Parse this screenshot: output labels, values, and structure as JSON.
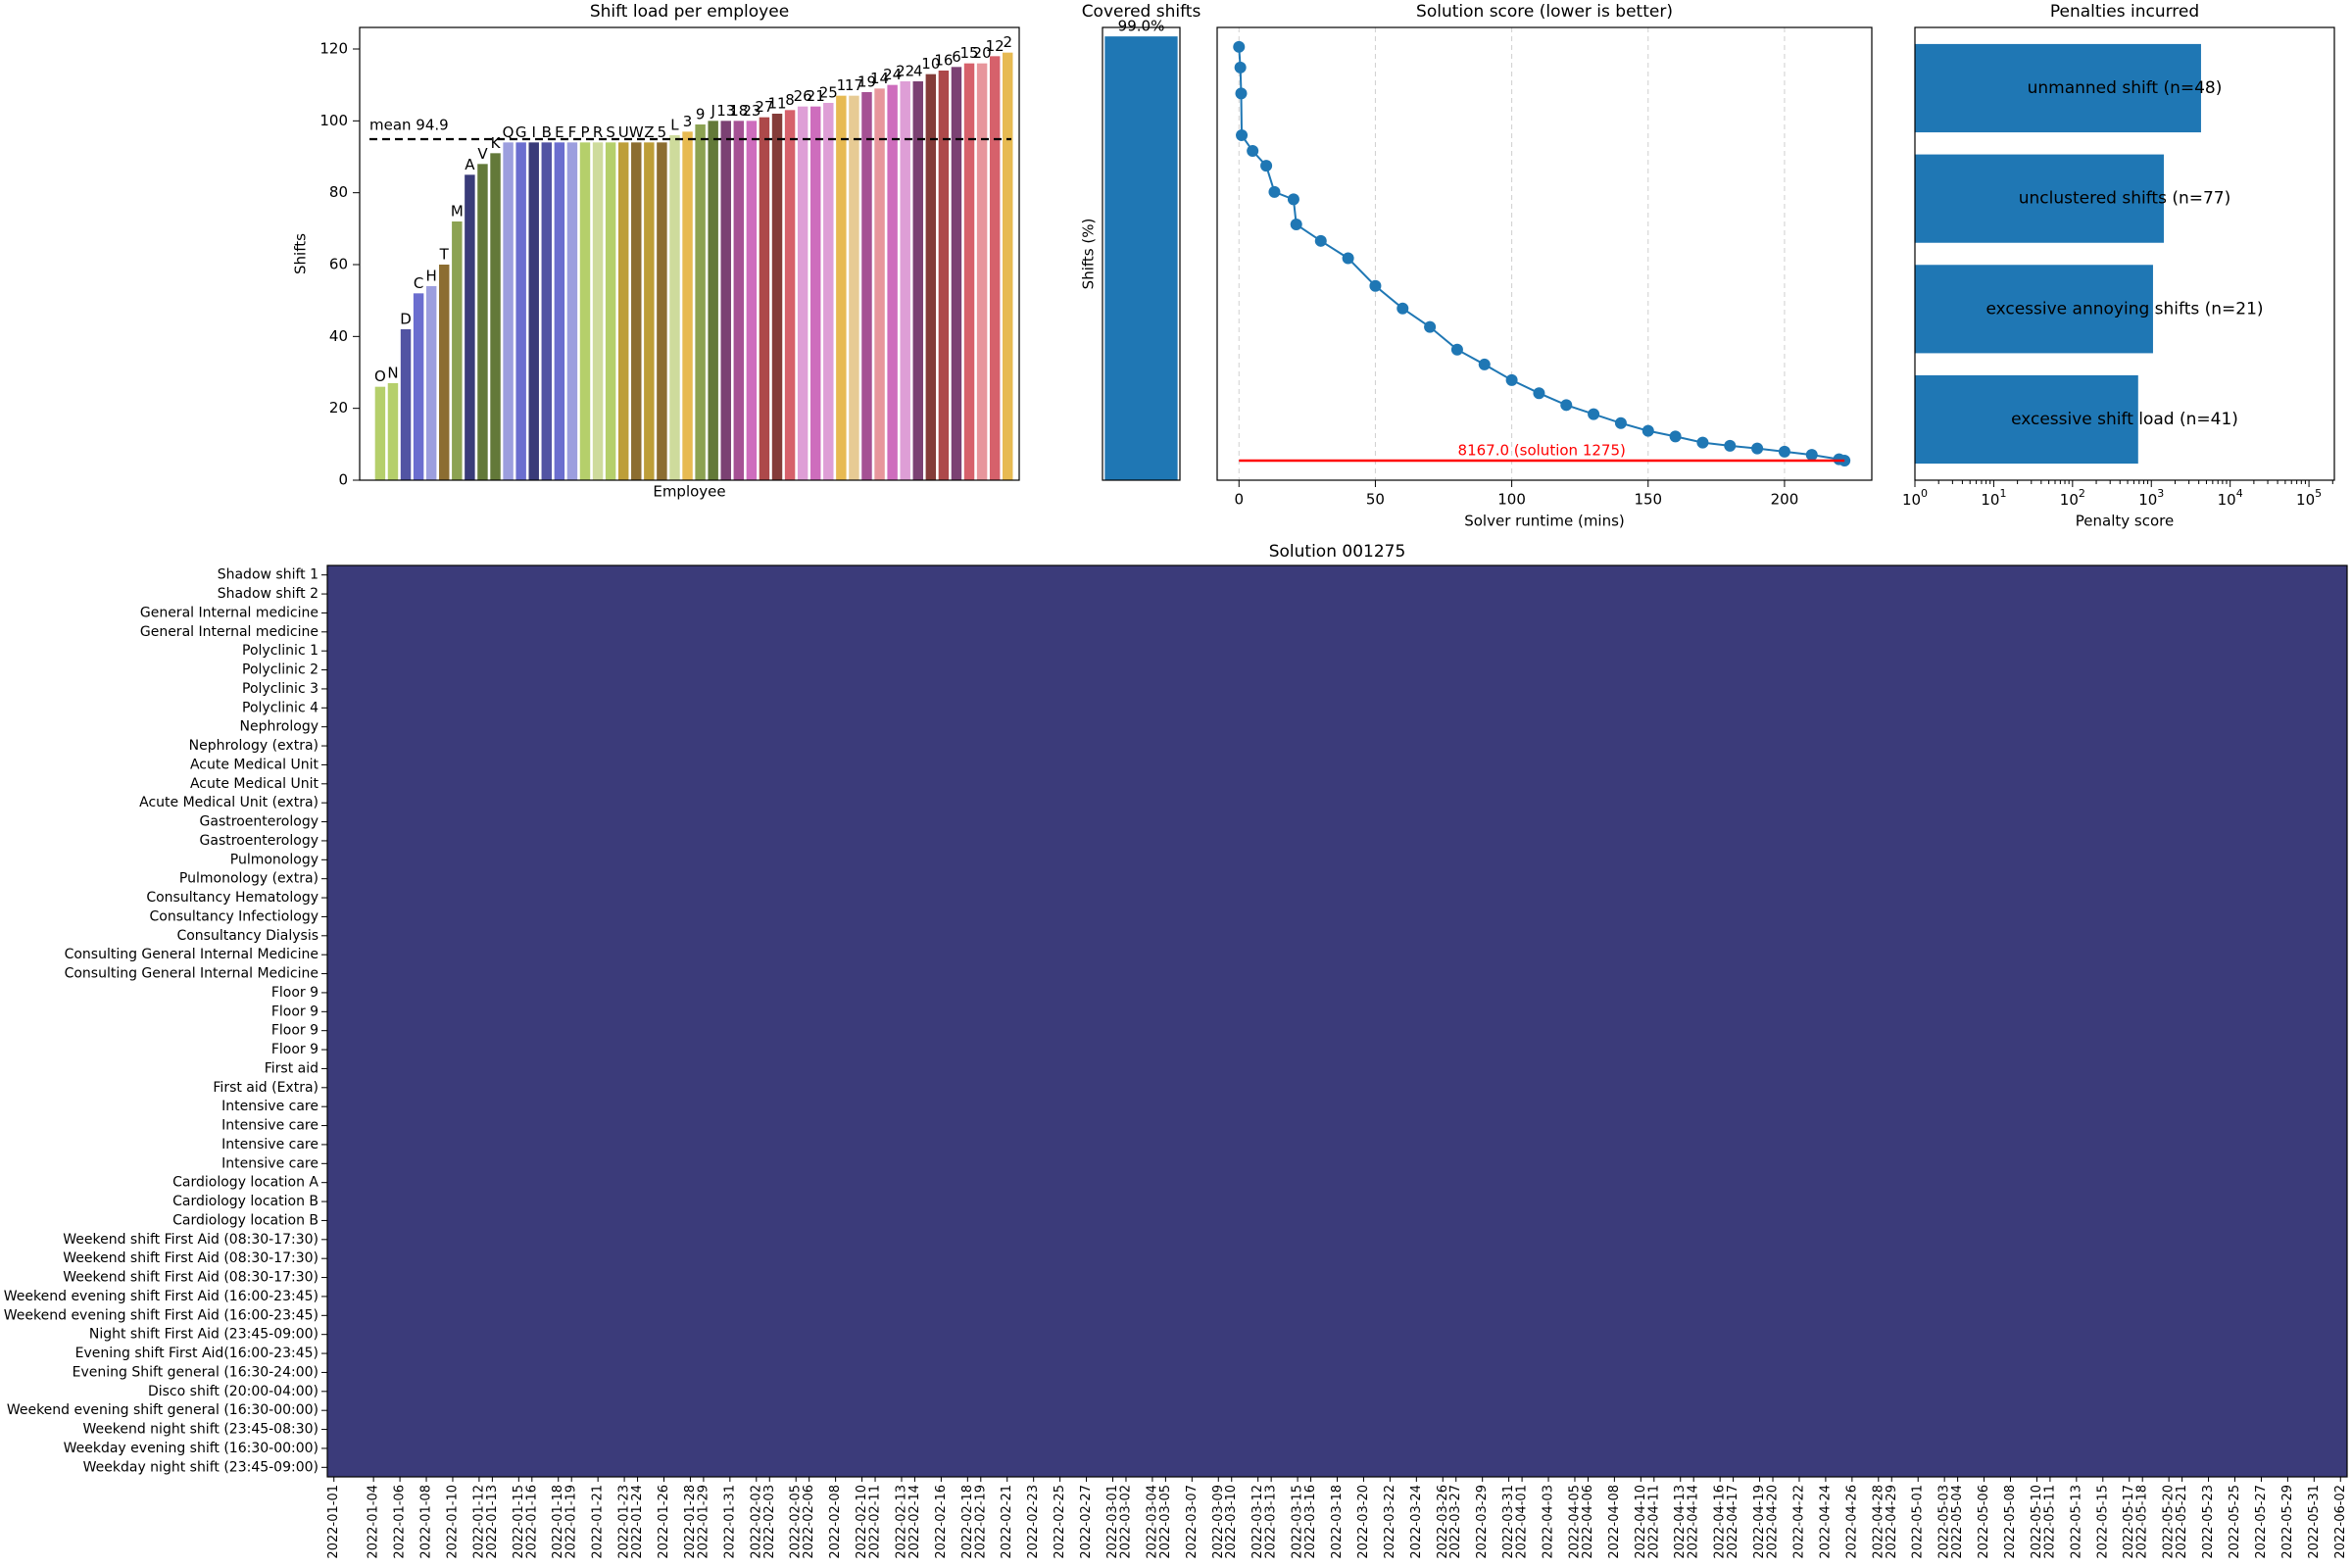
{
  "chart_data": [
    {
      "type": "bar",
      "title": "Shift load per employee",
      "ylabel": "Shifts",
      "xlabel": "Employee",
      "categories": [
        "O",
        "N",
        "D",
        "C",
        "H",
        "T",
        "M",
        "A",
        "V",
        "K",
        "Q",
        "G",
        "I",
        "B",
        "E",
        "F",
        "P",
        "R",
        "S",
        "U",
        "W",
        "Z",
        "5",
        "L",
        "3",
        "9",
        "J",
        "13",
        "18",
        "23",
        "27",
        "11",
        "8",
        "26",
        "21",
        "25",
        "1",
        "17",
        "19",
        "14",
        "24",
        "22",
        "4",
        "10",
        "16",
        "6",
        "15",
        "20",
        "12",
        "2"
      ],
      "values": [
        26,
        27,
        42,
        52,
        54,
        60,
        72,
        85,
        88,
        91,
        94,
        94,
        94,
        94,
        94,
        94,
        94,
        94,
        94,
        94,
        94,
        94,
        94,
        96,
        97,
        99,
        100,
        100,
        100,
        100,
        101,
        102,
        103,
        104,
        104,
        105,
        107,
        107,
        108,
        109,
        110,
        111,
        111,
        113,
        114,
        115,
        116,
        116,
        118,
        119
      ],
      "colors": [
        "#b5cf6b",
        "#b5cf6b",
        "#5254a3",
        "#6b6ecf",
        "#9c9ede",
        "#8c6d31",
        "#8ca252",
        "#393b79",
        "#637939",
        "#637939",
        "#9c9ede",
        "#6b6ecf",
        "#393b79",
        "#5254a3",
        "#6b6ecf",
        "#9c9ede",
        "#b5cf6b",
        "#cedb9c",
        "#b5cf6b",
        "#bd9e39",
        "#8c6d31",
        "#bd9e39",
        "#8c6d31",
        "#cedb9c",
        "#e7ba52",
        "#8ca252",
        "#637939",
        "#7b4173",
        "#a55194",
        "#ce6dbd",
        "#ad494a",
        "#843c39",
        "#d6616b",
        "#de9ed6",
        "#ce6dbd",
        "#de9ed6",
        "#e7ba52",
        "#e7cb94",
        "#a55194",
        "#e7969c",
        "#ce6dbd",
        "#de9ed6",
        "#7b4173",
        "#843c39",
        "#ad494a",
        "#7b4173",
        "#d6616b",
        "#e7969c",
        "#d6616b",
        "#e7ba52"
      ],
      "mean": 94.9,
      "mean_label": "mean 94.9",
      "ylim": [
        0,
        126
      ],
      "yticks": [
        0,
        20,
        40,
        60,
        80,
        100,
        120
      ]
    },
    {
      "type": "bar",
      "title": "Covered shifts",
      "ylabel": "Shifts (%)",
      "values": [
        99
      ],
      "value_labels": [
        "99.0%"
      ],
      "color": "#1f77b4",
      "ylim": [
        0,
        101
      ]
    },
    {
      "type": "line",
      "title": "Solution score (lower is better)",
      "xlabel": "Solver runtime (mins)",
      "log_y": true,
      "grid": true,
      "x": [
        0,
        0.5,
        0.8,
        1,
        5,
        10,
        13,
        20,
        21,
        30,
        40,
        50,
        60,
        70,
        80,
        90,
        100,
        110,
        120,
        130,
        140,
        150,
        160,
        170,
        180,
        190,
        200,
        210,
        220,
        222
      ],
      "series": [
        {
          "color": "#1f77b4",
          "values": [
            28300,
            26600,
            24600,
            21700,
            20700,
            19800,
            18300,
            17900,
            16600,
            15800,
            15000,
            13800,
            12900,
            12200,
            11400,
            10900,
            10400,
            10000,
            9650,
            9390,
            9140,
            8930,
            8780,
            8620,
            8540,
            8470,
            8390,
            8310,
            8200,
            8167
          ]
        }
      ],
      "hline": 8167,
      "hline_label": "8167.0 (solution 1275)",
      "hline_color": "#ff0000",
      "xlim": [
        -8,
        232
      ],
      "xticks": [
        0,
        50,
        100,
        150,
        200
      ],
      "ylim": [
        7700,
        30000
      ]
    },
    {
      "type": "bar",
      "orientation": "horizontal",
      "title": "Penalties incurred",
      "xlabel": "Penalty score",
      "log_x": true,
      "color": "#1f77b4",
      "categories": [
        "unmanned shift (n=48)",
        "unclustered shifts (n=77)",
        "excessive annoying shifts (n=21)",
        "excessive shift load (n=41)"
      ],
      "values": [
        4270,
        1440,
        1050,
        680
      ],
      "xlim": [
        1,
        210000
      ],
      "xticks": [
        {
          "value": 1,
          "label": "10",
          "exponent": "0"
        },
        {
          "value": 10,
          "label": "10",
          "exponent": "1"
        },
        {
          "value": 100,
          "label": "10",
          "exponent": "2"
        },
        {
          "value": 1000,
          "label": "10",
          "exponent": "3"
        },
        {
          "value": 10000,
          "label": "10",
          "exponent": "4"
        },
        {
          "value": 100000,
          "label": "10",
          "exponent": "5"
        }
      ]
    },
    {
      "type": "heatmap",
      "title": "Solution 001275",
      "background": "#3b3b7a",
      "rows": [
        "Shadow shift 1",
        "Shadow shift 2",
        "General Internal medicine",
        "General Internal medicine",
        "Polyclinic 1",
        "Polyclinic 2",
        "Polyclinic 3",
        "Polyclinic 4",
        "Nephrology",
        "Nephrology (extra)",
        "Acute Medical Unit",
        "Acute Medical Unit",
        "Acute Medical Unit (extra)",
        "Gastroenterology",
        "Gastroenterology",
        "Pulmonology",
        "Pulmonology (extra)",
        "Consultancy Hematology",
        "Consultancy Infectiology",
        "Consultancy Dialysis",
        "Consulting General Internal Medicine",
        "Consulting General Internal Medicine",
        "Floor 9",
        "Floor 9",
        "Floor 9",
        "Floor 9",
        "First aid",
        "First aid (Extra)",
        "Intensive care",
        "Intensive care",
        "Intensive care",
        "Intensive care",
        "Cardiology location A",
        "Cardiology location B",
        "Cardiology location B",
        "Weekend shift First Aid (08:30-17:30)",
        "Weekend shift First Aid (08:30-17:30)",
        "Weekend shift First Aid (08:30-17:30)",
        "Weekend evening shift First Aid  (16:00-23:45)",
        "Weekend evening shift First Aid  (16:00-23:45)",
        "Night shift First Aid (23:45-09:00)",
        "Evening shift First Aid(16:00-23:45)",
        "Evening Shift general (16:30-24:00)",
        "Disco shift (20:00-04:00)",
        "Weekend evening shift general (16:30-00:00)",
        "Weekend night shift (23:45-08:30)",
        "Weekday evening shift (16:30-00:00)",
        "Weekday night shift (23:45-09:00)"
      ],
      "xlim": [
        "2022-01-01",
        "2022-06-02"
      ],
      "x": [
        "2022-01-01",
        "2022-01-04",
        "2022-01-06",
        "2022-01-08",
        "2022-01-10",
        "2022-01-12",
        "2022-01-13",
        "2022-01-15",
        "2022-01-16",
        "2022-01-18",
        "2022-01-19",
        "2022-01-21",
        "2022-01-23",
        "2022-01-24",
        "2022-01-26",
        "2022-01-28",
        "2022-01-29",
        "2022-01-31",
        "2022-02-02",
        "2022-02-03",
        "2022-02-05",
        "2022-02-06",
        "2022-02-08",
        "2022-02-10",
        "2022-02-11",
        "2022-02-13",
        "2022-02-14",
        "2022-02-16",
        "2022-02-18",
        "2022-02-19",
        "2022-02-21",
        "2022-02-23",
        "2022-02-25",
        "2022-02-27",
        "2022-03-01",
        "2022-03-02",
        "2022-03-04",
        "2022-03-05",
        "2022-03-07",
        "2022-03-09",
        "2022-03-10",
        "2022-03-12",
        "2022-03-13",
        "2022-03-15",
        "2022-03-16",
        "2022-03-18",
        "2022-03-20",
        "2022-03-22",
        "2022-03-24",
        "2022-03-26",
        "2022-03-27",
        "2022-03-29",
        "2022-03-31",
        "2022-04-01",
        "2022-04-03",
        "2022-04-05",
        "2022-04-06",
        "2022-04-08",
        "2022-04-10",
        "2022-04-11",
        "2022-04-13",
        "2022-04-14",
        "2022-04-16",
        "2022-04-17",
        "2022-04-19",
        "2022-04-20",
        "2022-04-22",
        "2022-04-24",
        "2022-04-26",
        "2022-04-28",
        "2022-04-29",
        "2022-05-01",
        "2022-05-03",
        "2022-05-04",
        "2022-05-06",
        "2022-05-08",
        "2022-05-10",
        "2022-05-11",
        "2022-05-13",
        "2022-05-15",
        "2022-05-17",
        "2022-05-18",
        "2022-05-20",
        "2022-05-21",
        "2022-05-23",
        "2022-05-25",
        "2022-05-27",
        "2022-05-29",
        "2022-05-31",
        "2022-06-02"
      ]
    }
  ]
}
